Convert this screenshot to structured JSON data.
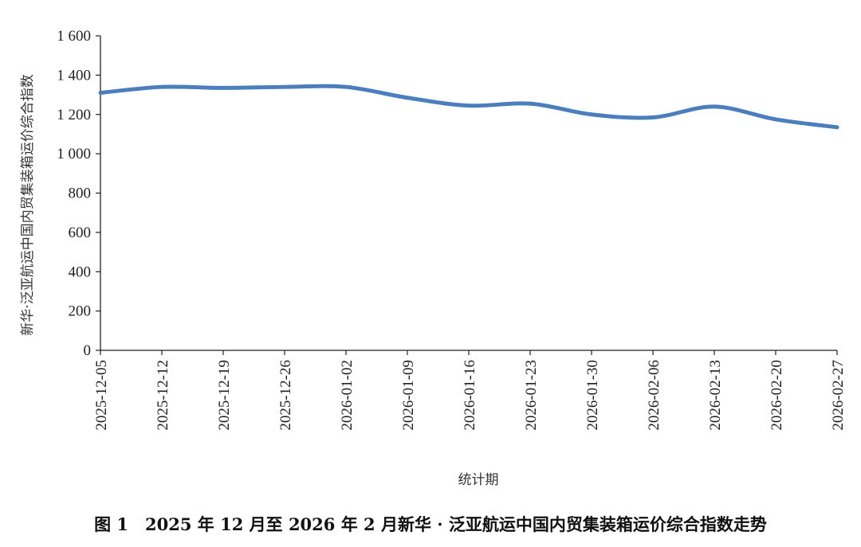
{
  "chart_data": {
    "type": "line",
    "title": "",
    "xlabel": "统计期",
    "ylabel": "新华·泛亚航运中国内贸集装箱运价综合指数",
    "ylim": [
      0,
      1600
    ],
    "y_ticks": [
      "0",
      "200",
      "400",
      "600",
      "800",
      "1 000",
      "1 200",
      "1 400",
      "1 600"
    ],
    "categories": [
      "2025-12-05",
      "2025-12-12",
      "2025-12-19",
      "2025-12-26",
      "2026-01-02",
      "2026-01-09",
      "2026-01-16",
      "2026-01-23",
      "2026-01-30",
      "2026-02-06",
      "2026-02-13",
      "2026-02-20",
      "2026-02-27"
    ],
    "series": [
      {
        "color": "#4a7ebd",
        "values": [
          1310,
          1340,
          1335,
          1340,
          1340,
          1285,
          1245,
          1255,
          1200,
          1185,
          1240,
          1175,
          1135
        ]
      }
    ],
    "grid": false,
    "legend": "none"
  },
  "caption": "图 1　2025 年 12 月至 2026 年 2 月新华 · 泛亚航运中国内贸集装箱运价综合指数走势"
}
